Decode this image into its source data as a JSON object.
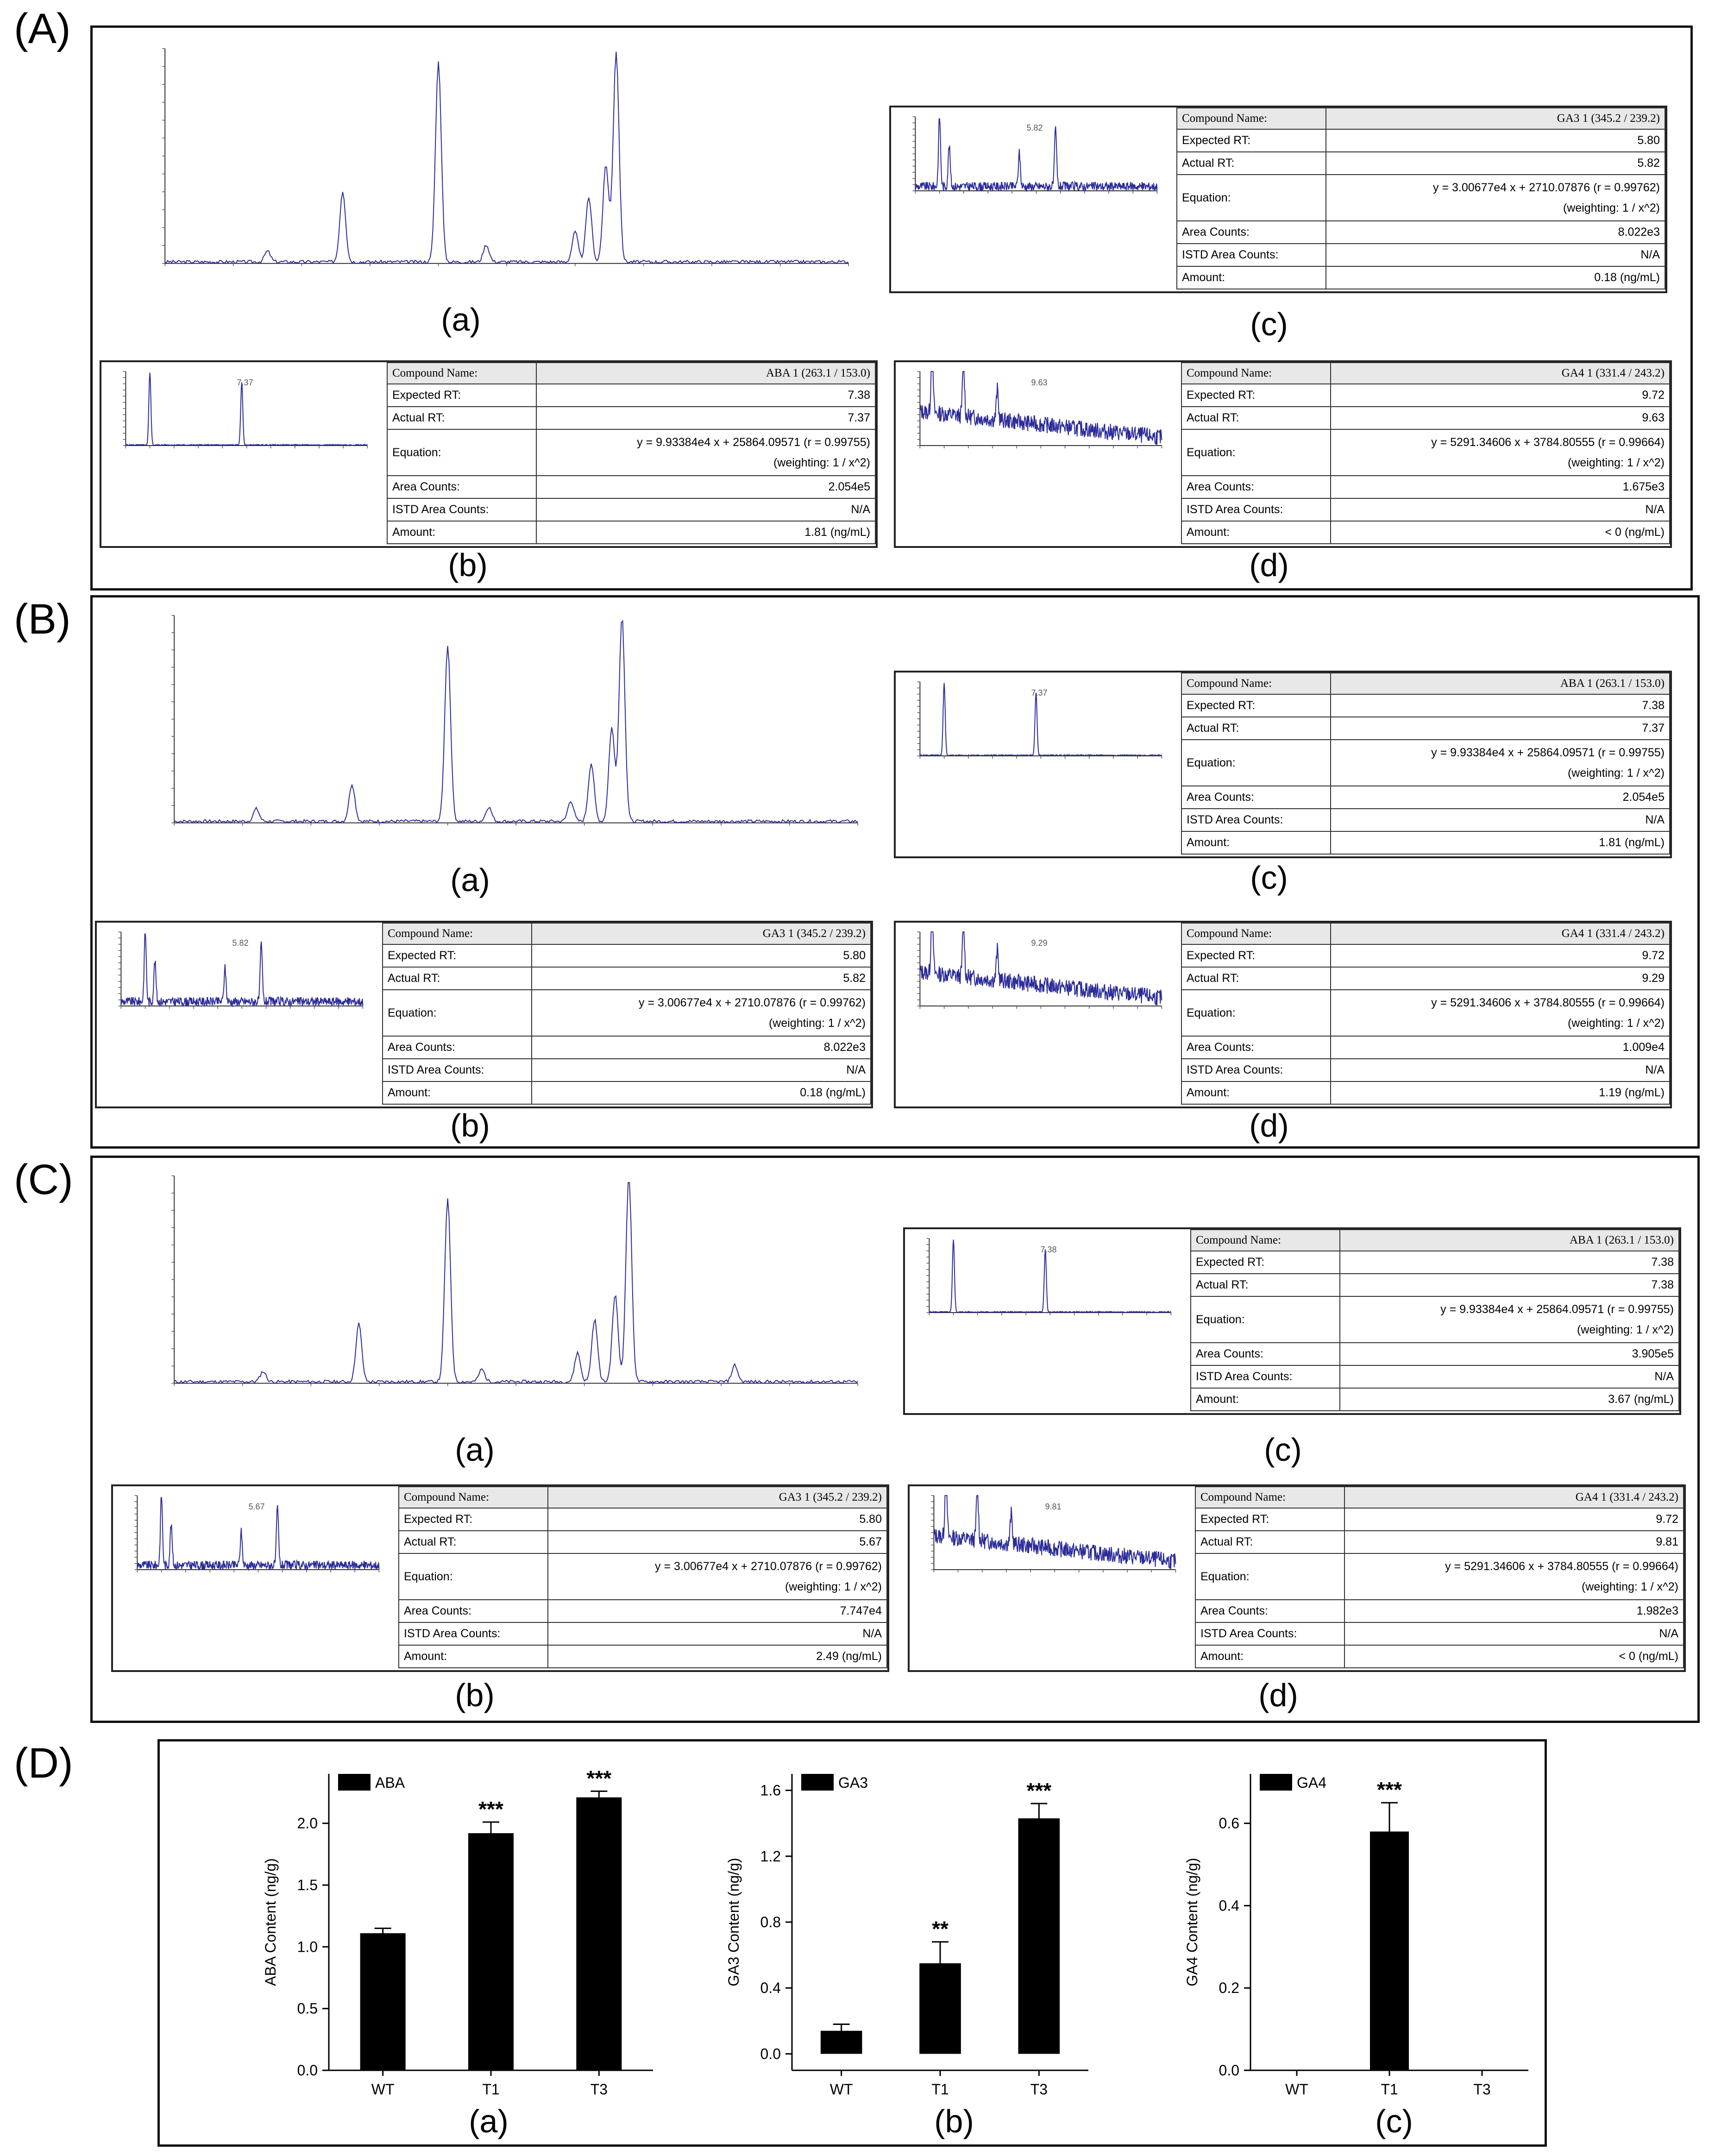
{
  "panels": {
    "A": {
      "label": "(A)",
      "sub": {
        "a": "(a)",
        "b": "(b)",
        "c": "(c)",
        "d": "(d)"
      },
      "b": {
        "compound": "ABA 1 (263.1 / 153.0)",
        "expected_rt": "7.38",
        "actual_rt": "7.37",
        "eq1": "y = 9.93384e4 x + 25864.09571 (r = 0.99755)",
        "eq2": "(weighting: 1 / x^2)",
        "area_counts": "2.054e5",
        "istd": "N/A",
        "amount": "1.81 (ng/mL)",
        "peak_label": "7.37"
      },
      "c": {
        "compound": "GA3 1 (345.2 / 239.2)",
        "expected_rt": "5.80",
        "actual_rt": "5.82",
        "eq1": "y = 3.00677e4 x + 2710.07876 (r = 0.99762)",
        "eq2": "(weighting: 1 / x^2)",
        "area_counts": "8.022e3",
        "istd": "N/A",
        "amount": "0.18 (ng/mL)",
        "peak_label": "5.82"
      },
      "d": {
        "compound": "GA4 1 (331.4 / 243.2)",
        "expected_rt": "9.72",
        "actual_rt": "9.63",
        "eq1": "y = 5291.34606 x + 3784.80555 (r = 0.99664)",
        "eq2": "(weighting: 1 / x^2)",
        "area_counts": "1.675e3",
        "istd": "N/A",
        "amount": "< 0 (ng/mL)",
        "peak_label": "9.63"
      }
    },
    "B": {
      "label": "(B)",
      "sub": {
        "a": "(a)",
        "b": "(b)",
        "c": "(c)",
        "d": "(d)"
      },
      "c": {
        "compound": "ABA 1 (263.1 / 153.0)",
        "expected_rt": "7.38",
        "actual_rt": "7.37",
        "eq1": "y = 9.93384e4 x + 25864.09571 (r = 0.99755)",
        "eq2": "(weighting: 1 / x^2)",
        "area_counts": "2.054e5",
        "istd": "N/A",
        "amount": "1.81 (ng/mL)",
        "peak_label": "7.37"
      },
      "b": {
        "compound": "GA3 1 (345.2 / 239.2)",
        "expected_rt": "5.80",
        "actual_rt": "5.82",
        "eq1": "y = 3.00677e4 x + 2710.07876 (r = 0.99762)",
        "eq2": "(weighting: 1 / x^2)",
        "area_counts": "8.022e3",
        "istd": "N/A",
        "amount": "0.18 (ng/mL)",
        "peak_label": "5.82"
      },
      "d": {
        "compound": "GA4 1 (331.4 / 243.2)",
        "expected_rt": "9.72",
        "actual_rt": "9.29",
        "eq1": "y = 5291.34606 x + 3784.80555 (r = 0.99664)",
        "eq2": "(weighting: 1 / x^2)",
        "area_counts": "1.009e4",
        "istd": "N/A",
        "amount": "1.19 (ng/mL)",
        "peak_label": "9.29"
      }
    },
    "C": {
      "label": "(C)",
      "sub": {
        "a": "(a)",
        "b": "(b)",
        "c": "(c)",
        "d": "(d)"
      },
      "c": {
        "compound": "ABA 1 (263.1 / 153.0)",
        "expected_rt": "7.38",
        "actual_rt": "7.38",
        "eq1": "y = 9.93384e4 x + 25864.09571 (r = 0.99755)",
        "eq2": "(weighting: 1 / x^2)",
        "area_counts": "3.905e5",
        "istd": "N/A",
        "amount": "3.67 (ng/mL)",
        "peak_label": "7.38"
      },
      "b": {
        "compound": "GA3 1 (345.2 / 239.2)",
        "expected_rt": "5.80",
        "actual_rt": "5.67",
        "eq1": "y = 3.00677e4 x + 2710.07876 (r = 0.99762)",
        "eq2": "(weighting: 1 / x^2)",
        "area_counts": "7.747e4",
        "istd": "N/A",
        "amount": "2.49 (ng/mL)",
        "peak_label": "5.67"
      },
      "d": {
        "compound": "GA4 1 (331.4 / 243.2)",
        "expected_rt": "9.72",
        "actual_rt": "9.81",
        "eq1": "y = 5291.34606 x + 3784.80555 (r = 0.99664)",
        "eq2": "(weighting: 1 / x^2)",
        "area_counts": "1.982e3",
        "istd": "N/A",
        "amount": "< 0 (ng/mL)",
        "peak_label": "9.81"
      }
    },
    "D": {
      "label": "(D)",
      "sub": {
        "a": "(a)",
        "b": "(b)",
        "c": "(c)"
      }
    }
  },
  "table_labels": {
    "compound": "Compound Name:",
    "expected_rt": "Expected RT:",
    "actual_rt": "Actual RT:",
    "equation": "Equation:",
    "area_counts": "Area Counts:",
    "istd": "ISTD Area Counts:",
    "amount": "Amount:"
  },
  "chart_data": [
    {
      "type": "bar",
      "title": "",
      "legend": "ABA",
      "categories": [
        "WT",
        "T1",
        "T3"
      ],
      "values": [
        1.11,
        1.92,
        2.21
      ],
      "errors": [
        0.04,
        0.09,
        0.05
      ],
      "significance": [
        "",
        "***",
        "***"
      ],
      "ylabel": "ABA Content (ng/g)",
      "xlabel": "",
      "ylim": [
        0,
        2.4
      ],
      "yticks": [
        0.0,
        0.5,
        1.0,
        1.5,
        2.0
      ],
      "yticklabels": [
        "0.0",
        "0.5",
        "1.0",
        "1.5",
        "2.0"
      ],
      "series_color": "#000000"
    },
    {
      "type": "bar",
      "title": "",
      "legend": "GA3",
      "categories": [
        "WT",
        "T1",
        "T3"
      ],
      "values": [
        0.14,
        0.55,
        1.43
      ],
      "errors": [
        0.04,
        0.13,
        0.09
      ],
      "significance": [
        "",
        "**",
        "***"
      ],
      "ylabel": "GA3 Content (ng/g)",
      "xlabel": "",
      "ylim": [
        -0.1,
        1.7
      ],
      "yticks": [
        0.0,
        0.4,
        0.8,
        1.2,
        1.6
      ],
      "yticklabels": [
        "0.0",
        "0.4",
        "0.8",
        "1.2",
        "1.6"
      ],
      "series_color": "#000000"
    },
    {
      "type": "bar",
      "title": "",
      "legend": "GA4",
      "categories": [
        "WT",
        "T1",
        "T3"
      ],
      "values": [
        0,
        0.58,
        0
      ],
      "errors": [
        0,
        0.07,
        0
      ],
      "significance": [
        "",
        "***",
        ""
      ],
      "ylabel": "GA4 Content (ng/g)",
      "xlabel": "",
      "ylim": [
        0,
        0.72
      ],
      "yticks": [
        0.0,
        0.2,
        0.4,
        0.6
      ],
      "yticklabels": [
        "0.0",
        "0.2",
        "0.4",
        "0.6"
      ],
      "series_color": "#000000"
    }
  ]
}
